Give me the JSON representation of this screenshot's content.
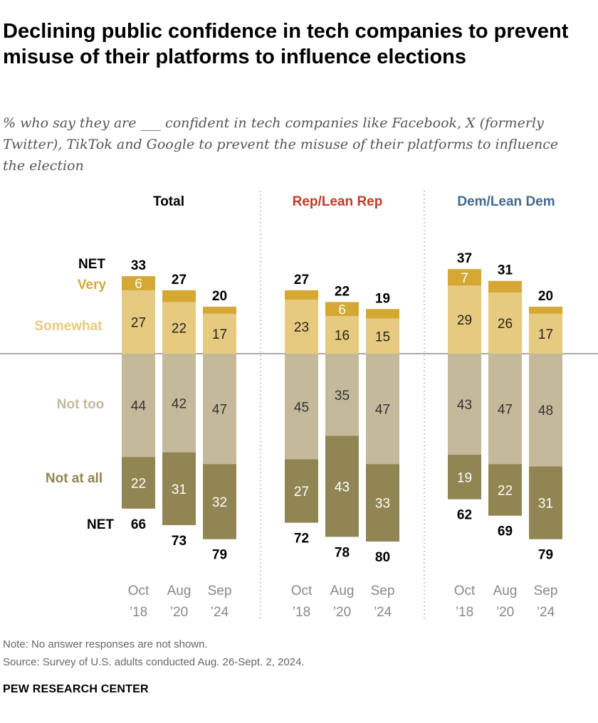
{
  "title": "Declining public confidence in tech companies to prevent misuse of their platforms to influence elections",
  "subtitle": "% who say they are ___ confident in tech companies like Facebook, X (formerly Twitter), TikTok and Google to prevent the misuse of their platforms to influence the election",
  "note": "Note: No answer responses are not shown.",
  "source": "Source: Survey of U.S. adults conducted Aug. 26-Sept. 2, 2024.",
  "logo": "PEW RESEARCH CENTER",
  "chart_data": {
    "type": "bar",
    "stacked": "diverging",
    "categories": [
      [
        "Oct",
        "’18"
      ],
      [
        "Aug",
        "’20"
      ],
      [
        "Sep",
        "’24"
      ]
    ],
    "legend_labels": {
      "net": "NET",
      "very": "Very",
      "somewhat": "Somewhat",
      "not_too": "Not too",
      "not_at_all": "Not at all"
    },
    "colors": {
      "very": "#D4A833",
      "somewhat": "#E6CA7F",
      "not_too": "#C4B99A",
      "not_at_all": "#918553",
      "rep": "#BF3B27",
      "dem": "#43698A"
    },
    "groups": [
      {
        "name": "Total",
        "color": "#000000",
        "very": [
          6,
          5,
          3
        ],
        "very_labels": [
          "6",
          "",
          ""
        ],
        "somewhat": [
          27,
          22,
          17
        ],
        "not_too": [
          44,
          42,
          47
        ],
        "not_at_all": [
          22,
          31,
          32
        ],
        "net_confident": [
          33,
          27,
          20
        ],
        "net_not": [
          66,
          73,
          79
        ]
      },
      {
        "name": "Rep/Lean Rep",
        "color": "#BF3B27",
        "very": [
          4,
          6,
          4
        ],
        "very_labels": [
          "",
          "6",
          ""
        ],
        "somewhat": [
          23,
          16,
          15
        ],
        "not_too": [
          45,
          35,
          47
        ],
        "not_at_all": [
          27,
          43,
          33
        ],
        "net_confident": [
          27,
          22,
          19
        ],
        "net_not": [
          72,
          78,
          80
        ]
      },
      {
        "name": "Dem/Lean Dem",
        "color": "#43698A",
        "very": [
          7,
          5,
          3
        ],
        "very_labels": [
          "7",
          "",
          ""
        ],
        "somewhat": [
          29,
          26,
          17
        ],
        "not_too": [
          43,
          47,
          48
        ],
        "not_at_all": [
          19,
          22,
          31
        ],
        "net_confident": [
          37,
          31,
          20
        ],
        "net_not": [
          62,
          69,
          79
        ]
      }
    ]
  }
}
